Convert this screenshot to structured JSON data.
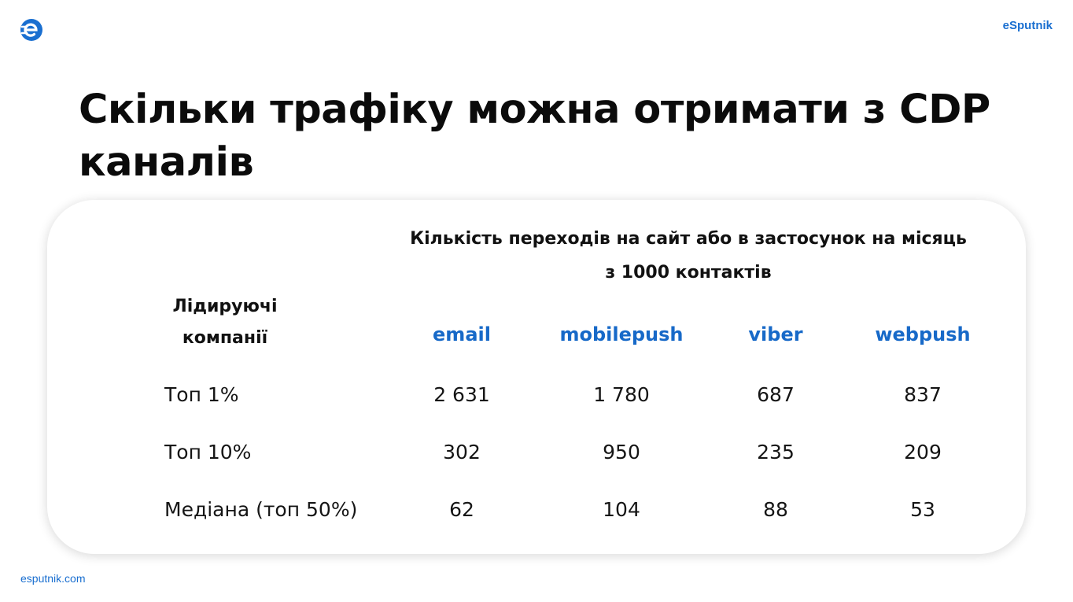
{
  "brand": {
    "name": "eSputnik",
    "logo_icon": "esputnik-logo-icon",
    "accent_color": "#1a6fd0"
  },
  "title": {
    "line1": "Скільки трафіку можна отримати з CDP",
    "line2": "каналів"
  },
  "table": {
    "heading_line1": "Кількість переходів на сайт або в застосунок на місяць",
    "heading_line2": "з 1000 контактів",
    "row_header_line1": "Лідируючі",
    "row_header_line2": "компанії",
    "columns": [
      "email",
      "mobilepush",
      "viber",
      "webpush"
    ],
    "rows": [
      {
        "label": "Топ 1%",
        "values": [
          "2 631",
          "1 780",
          "687",
          "837"
        ]
      },
      {
        "label": "Топ 10%",
        "values": [
          "302",
          "950",
          "235",
          "209"
        ]
      },
      {
        "label": "Медіана (топ 50%)",
        "values": [
          "62",
          "104",
          "88",
          "53"
        ]
      }
    ]
  },
  "footer": {
    "url": "esputnik.com"
  }
}
